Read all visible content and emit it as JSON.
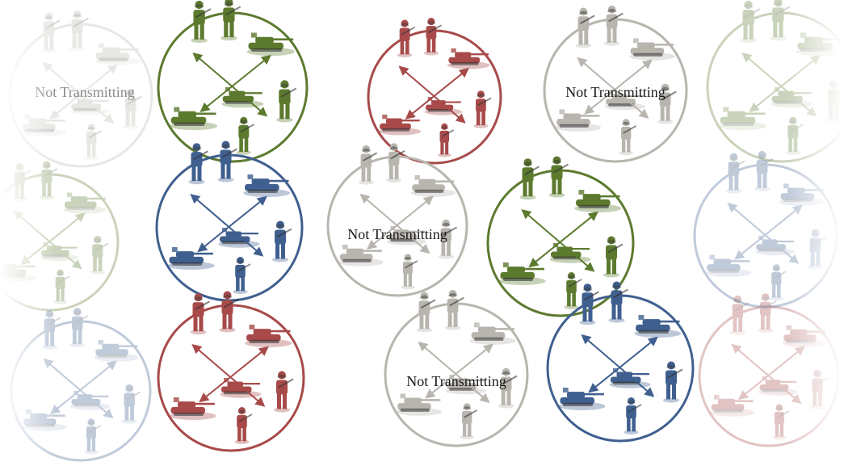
{
  "label_text": "Not Transmitting",
  "colors": {
    "green": "#5c7a2e",
    "blue": "#3f5f8f",
    "red": "#a84a4a",
    "gray": "#b8b5ae",
    "label_active": "#1a1a1a",
    "label_faded": "#8a8a8a"
  },
  "cells": [
    {
      "id": "c1",
      "color": "gray",
      "state": "not-transmitting",
      "faded": true,
      "labeled": true
    },
    {
      "id": "c2",
      "color": "green",
      "state": "transmitting",
      "faded": false,
      "labeled": false
    },
    {
      "id": "c3",
      "color": "green",
      "state": "faded",
      "faded": true,
      "labeled": false
    },
    {
      "id": "c4",
      "color": "blue",
      "state": "transmitting",
      "faded": false,
      "labeled": false
    },
    {
      "id": "c5",
      "color": "blue",
      "state": "faded",
      "faded": true,
      "labeled": false
    },
    {
      "id": "c6",
      "color": "red",
      "state": "transmitting",
      "faded": false,
      "labeled": false
    },
    {
      "id": "c7",
      "color": "red",
      "state": "transmitting",
      "faded": false,
      "labeled": false
    },
    {
      "id": "c8",
      "color": "gray",
      "state": "not-transmitting",
      "faded": false,
      "labeled": true
    },
    {
      "id": "c9",
      "color": "gray",
      "state": "not-transmitting",
      "faded": false,
      "labeled": true
    },
    {
      "id": "c10",
      "color": "green",
      "state": "transmitting",
      "faded": false,
      "labeled": false
    },
    {
      "id": "c11",
      "color": "gray",
      "state": "not-transmitting",
      "faded": false,
      "labeled": true
    },
    {
      "id": "c12",
      "color": "blue",
      "state": "transmitting",
      "faded": false,
      "labeled": false
    },
    {
      "id": "c13",
      "color": "green",
      "state": "faded",
      "faded": true,
      "labeled": false
    },
    {
      "id": "c14",
      "color": "blue",
      "state": "faded",
      "faded": true,
      "labeled": false
    },
    {
      "id": "c15",
      "color": "red",
      "state": "faded",
      "faded": true,
      "labeled": false
    }
  ]
}
